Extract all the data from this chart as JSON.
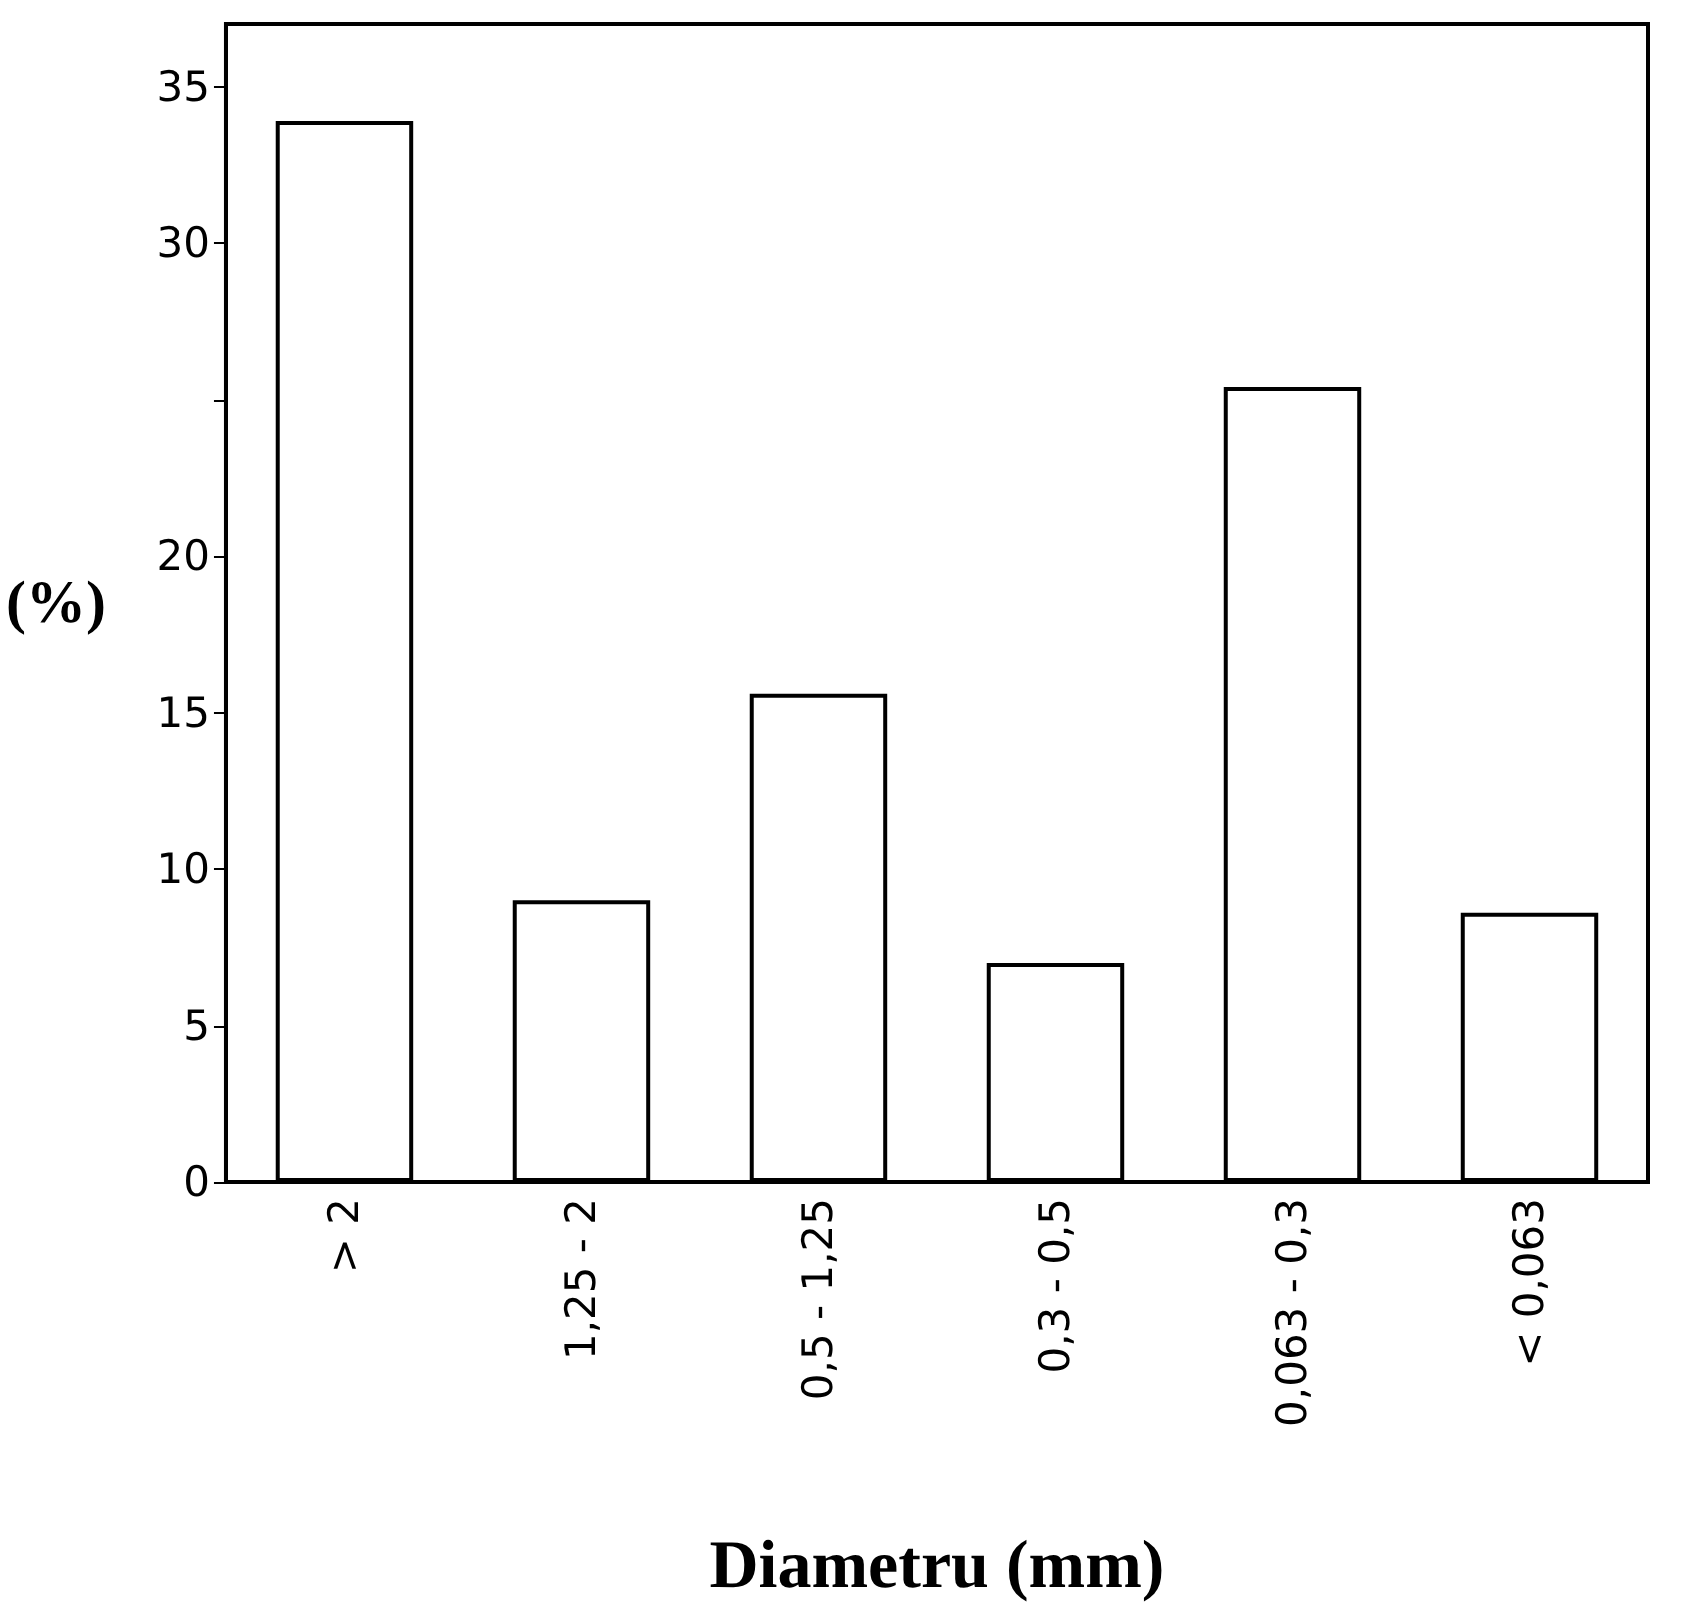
{
  "chart_data": {
    "type": "bar",
    "xlabel": "Diametru (mm)",
    "ylabel": "(%)",
    "categories": [
      "> 2",
      "1,25 - 2",
      "0,5 - 1,25",
      "0,3 - 0,5",
      "0,063 - 0,3",
      "< 0,063"
    ],
    "values": [
      33.9,
      9,
      15.6,
      7,
      25.4,
      8.6
    ],
    "color": "#ffffff",
    "ylim": [
      0,
      37
    ],
    "yticks": [
      0,
      5,
      10,
      15,
      20,
      {
        "value": 25,
        "label": null
      },
      30,
      35
    ],
    "grid": false
  }
}
